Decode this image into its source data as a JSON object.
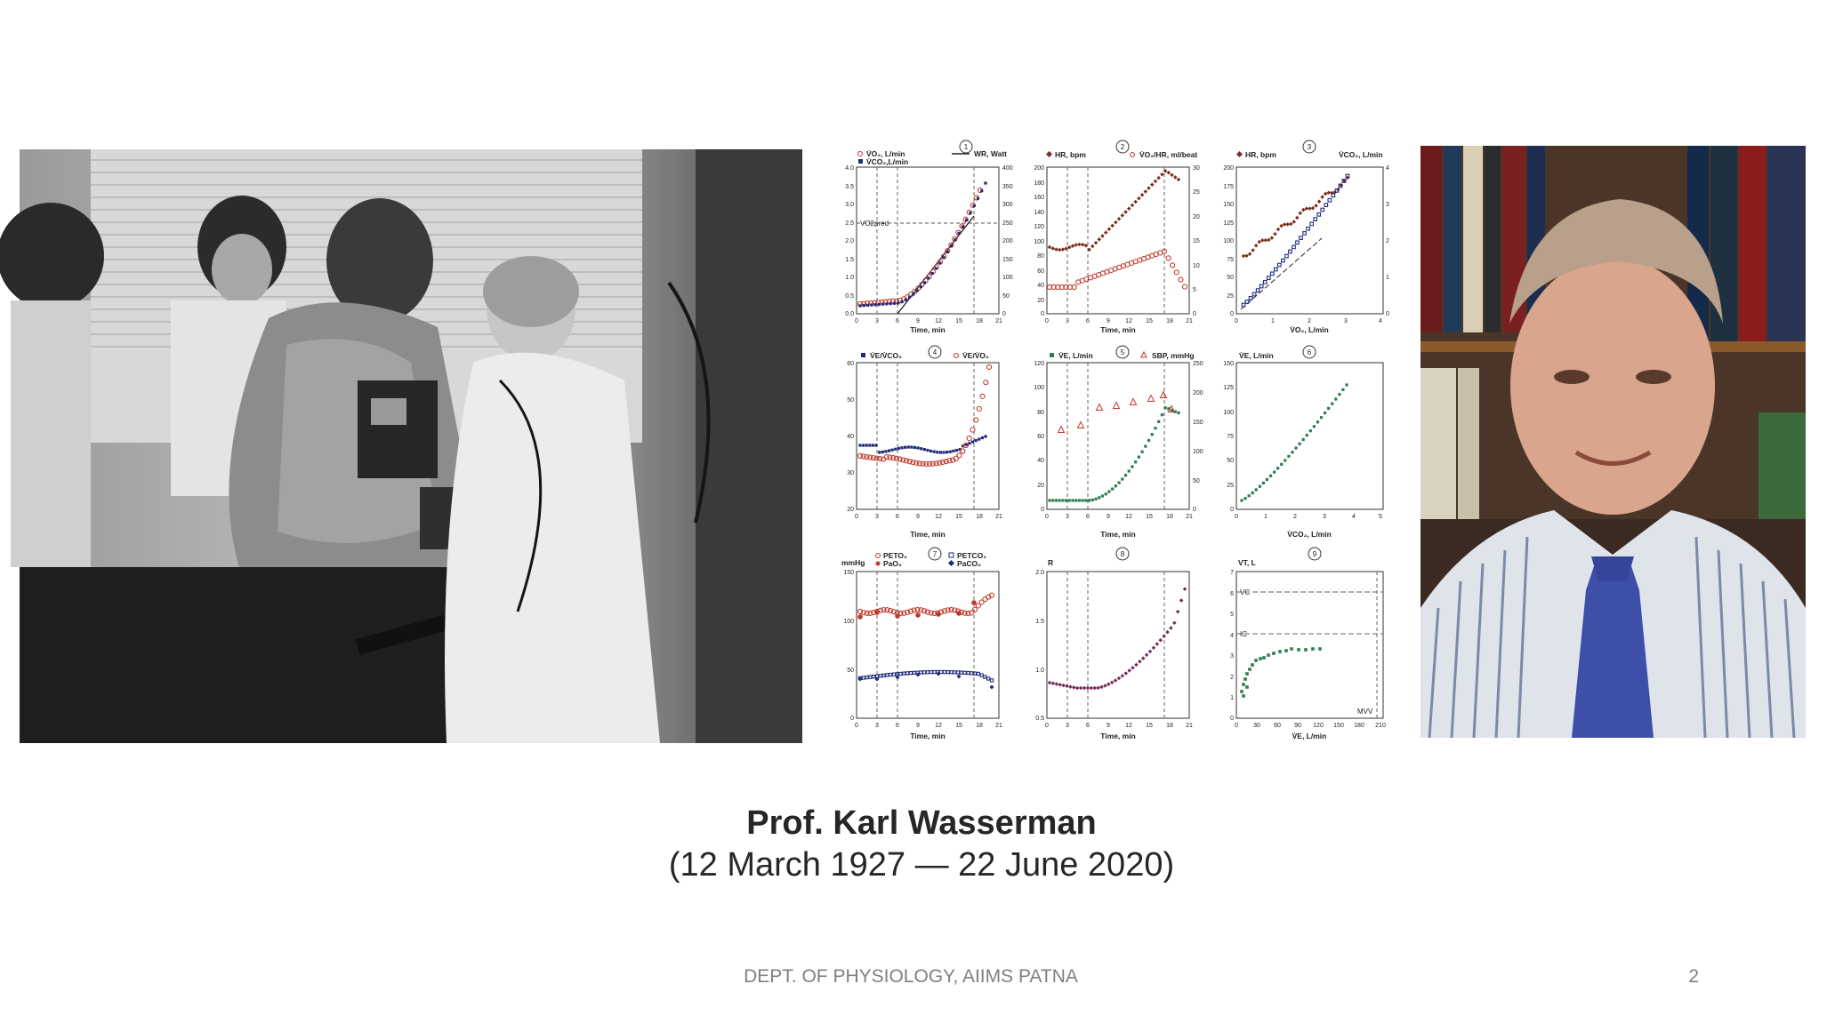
{
  "slide": {
    "title": "Prof. Karl Wasserman",
    "dates": "(12 March 1927 — 22 June 2020)",
    "footer": "DEPT. OF PHYSIOLOGY, AIIMS PATNA",
    "slide_number": "2"
  },
  "colors": {
    "caption": "#262626",
    "footer": "#7f7f7f",
    "red": "#c0392b",
    "navy": "#1f2a7a",
    "brown": "#7b2e1e",
    "green": "#2e7d4f",
    "purple": "#7a2a5a"
  },
  "panels": [
    {
      "num": "1",
      "legends": [
        "V̇O₂, L/min",
        "V̇CO₂,L/min",
        "WR, Watt"
      ],
      "xlabel": "Time, min",
      "xticks": [
        "0",
        "3",
        "6",
        "9",
        "12",
        "15",
        "18",
        "21"
      ],
      "yticks": [
        "4.0",
        "3.5",
        "3.0",
        "2.5",
        "2.0",
        "1.5",
        "1.0",
        "0.5",
        "0.0"
      ],
      "rticks": [
        "400",
        "350",
        "300",
        "250",
        "200",
        "150",
        "100",
        "50",
        "0"
      ],
      "note": "VO2pred"
    },
    {
      "num": "2",
      "legends": [
        "HR, bpm",
        "V̇O₂/HR, ml/beat"
      ],
      "xlabel": "Time, min",
      "xticks": [
        "0",
        "3",
        "6",
        "9",
        "12",
        "15",
        "18",
        "21"
      ],
      "yticks": [
        "200",
        "180",
        "160",
        "140",
        "120",
        "100",
        "80",
        "60",
        "40",
        "20",
        "0"
      ],
      "rticks": [
        "30",
        "25",
        "20",
        "15",
        "10",
        "5",
        "0"
      ]
    },
    {
      "num": "3",
      "legends": [
        "HR, bpm",
        "V̇CO₂, L/min"
      ],
      "xlabel": "V̇O₂, L/min",
      "xticks": [
        "0",
        "1",
        "2",
        "3",
        "4"
      ],
      "yticks": [
        "200",
        "175",
        "150",
        "125",
        "100",
        "75",
        "50",
        "25",
        "0"
      ],
      "rticks": [
        "4",
        "3",
        "2",
        "1",
        "0"
      ]
    },
    {
      "num": "4",
      "legends": [
        "V̇E/V̇CO₂",
        "V̇E/V̇O₂"
      ],
      "xlabel": "Time, min",
      "xticks": [
        "0",
        "3",
        "6",
        "9",
        "12",
        "15",
        "18",
        "21"
      ],
      "yticks": [
        "60",
        "50",
        "40",
        "30",
        "20"
      ]
    },
    {
      "num": "5",
      "legends": [
        "V̇E, L/min",
        "SBP, mmHg"
      ],
      "xlabel": "Time, min",
      "xticks": [
        "0",
        "3",
        "6",
        "9",
        "12",
        "15",
        "18",
        "21"
      ],
      "yticks": [
        "120",
        "100",
        "80",
        "60",
        "40",
        "20",
        "0"
      ],
      "rticks": [
        "250",
        "200",
        "150",
        "100",
        "50",
        "0"
      ]
    },
    {
      "num": "6",
      "legends": [
        "V̇E, L/min"
      ],
      "xlabel": "V̇CO₂, L/min",
      "xticks": [
        "0",
        "1",
        "2",
        "3",
        "4",
        "5"
      ],
      "yticks": [
        "150",
        "125",
        "100",
        "75",
        "50",
        "25",
        "0"
      ]
    },
    {
      "num": "7",
      "legends": [
        "mmHg",
        "PETO₂",
        "PaO₂",
        "PETCO₂",
        "PaCO₂"
      ],
      "xlabel": "Time, min",
      "xticks": [
        "0",
        "3",
        "6",
        "9",
        "12",
        "15",
        "18",
        "21"
      ],
      "yticks": [
        "150",
        "100",
        "50",
        "0"
      ]
    },
    {
      "num": "8",
      "legends": [
        "R"
      ],
      "xlabel": "Time, min",
      "xticks": [
        "0",
        "3",
        "6",
        "9",
        "12",
        "15",
        "18",
        "21"
      ],
      "yticks": [
        "2.0",
        "1.5",
        "1.0",
        "0.5"
      ]
    },
    {
      "num": "9",
      "legends": [
        "VT, L",
        "VC",
        "IC",
        "MVV"
      ],
      "xlabel": "V̇E, L/min",
      "xticks": [
        "0",
        "30",
        "60",
        "90",
        "120",
        "150",
        "180",
        "210"
      ],
      "yticks": [
        "7",
        "6",
        "5",
        "4",
        "3",
        "2",
        "1",
        "0"
      ]
    }
  ]
}
